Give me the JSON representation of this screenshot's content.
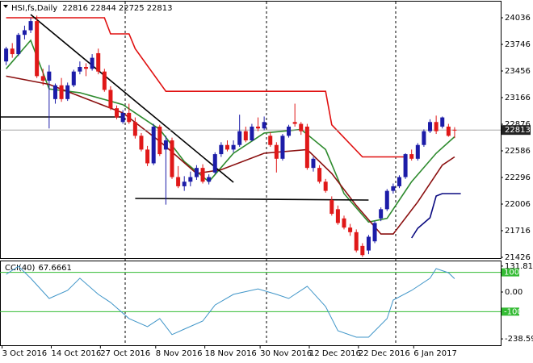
{
  "chart_data": [
    {
      "type": "candlestick",
      "title": "HSI,fs,Daily",
      "header_values": [
        22816,
        22844,
        22725,
        22813
      ],
      "open": [
        23560,
        23700,
        23640,
        23850,
        23900,
        24000,
        23400,
        23350,
        23150,
        23300,
        23150,
        23300,
        23450,
        23500,
        23480,
        23650,
        23450,
        23250,
        23050,
        22900,
        23000,
        22900,
        22750,
        22600,
        22450,
        22850,
        22600,
        22700,
        22300,
        22200,
        22250,
        22300,
        22400,
        22250,
        22350,
        22550,
        22650,
        22600,
        22650,
        22800,
        22700,
        22850,
        22830,
        22750,
        22650,
        22500,
        22750,
        22900,
        22880,
        22850,
        22400,
        22400,
        22250,
        22050,
        21950,
        21850,
        21750,
        21700,
        21550,
        21500,
        21600,
        21850,
        21950,
        22150,
        22200,
        22300,
        22550,
        22500,
        22650,
        22800,
        22900,
        22850,
        22850,
        22816
      ],
      "high": [
        23720,
        23760,
        23870,
        23950,
        24030,
        24060,
        23480,
        23520,
        23320,
        23380,
        23330,
        23470,
        23560,
        23540,
        23640,
        23700,
        23480,
        23290,
        23080,
        23030,
        23100,
        22950,
        22780,
        22640,
        22880,
        22870,
        22750,
        22730,
        22420,
        22310,
        22360,
        22430,
        22440,
        22330,
        22570,
        22680,
        22700,
        22700,
        22980,
        22850,
        22880,
        22950,
        22960,
        22790,
        22680,
        22770,
        22870,
        23100,
        22900,
        22880,
        22520,
        22430,
        22280,
        22090,
        21990,
        21880,
        21790,
        21730,
        21580,
        21670,
        21820,
        21970,
        22170,
        22230,
        22320,
        22560,
        22600,
        22670,
        22820,
        22930,
        22970,
        22960,
        22880,
        22844
      ],
      "low": [
        23520,
        23600,
        23620,
        23800,
        23870,
        23380,
        23300,
        22830,
        23100,
        23120,
        23130,
        23280,
        23420,
        23400,
        23460,
        23420,
        23230,
        23030,
        22930,
        22880,
        22880,
        22720,
        22580,
        22420,
        22430,
        22530,
        22000,
        22280,
        22180,
        22150,
        22200,
        22270,
        22230,
        22220,
        22330,
        22520,
        22580,
        22570,
        22630,
        22680,
        22690,
        22800,
        22810,
        22630,
        22350,
        22480,
        22730,
        22850,
        22760,
        22380,
        22360,
        22230,
        22130,
        21880,
        21780,
        21730,
        21660,
        21480,
        21430,
        21460,
        21580,
        21820,
        21930,
        22120,
        22180,
        22280,
        22480,
        22480,
        22630,
        22780,
        22770,
        22830,
        22740,
        22725
      ],
      "close": [
        23700,
        23640,
        23850,
        23900,
        24000,
        23400,
        23350,
        23450,
        23300,
        23150,
        23300,
        23450,
        23500,
        23480,
        23600,
        23450,
        23250,
        23050,
        22950,
        23000,
        22900,
        22750,
        22600,
        22450,
        22850,
        22550,
        22700,
        22300,
        22200,
        22250,
        22300,
        22400,
        22250,
        22300,
        22550,
        22650,
        22600,
        22650,
        22800,
        22700,
        22850,
        22830,
        22900,
        22650,
        22500,
        22750,
        22850,
        22880,
        22800,
        22400,
        22500,
        22250,
        22150,
        21900,
        21800,
        21750,
        21700,
        21500,
        21450,
        21650,
        21800,
        21950,
        22150,
        22200,
        22300,
        22550,
        22500,
        22650,
        22800,
        22900,
        22800,
        22950,
        22750,
        22813
      ],
      "up_color": "#1c1ca8",
      "down_color": "#e01818",
      "current_price": 22813,
      "xlim": [
        -1,
        80.5
      ],
      "ylim": [
        21417,
        24212
      ],
      "yticks": [
        24036,
        23746,
        23456,
        23166,
        22876,
        22586,
        22296,
        22006,
        21716,
        21426
      ],
      "xticks": [
        {
          "value": 0,
          "label": "3 Oct 2016"
        },
        {
          "value": 8,
          "label": "14 Oct 2016"
        },
        {
          "value": 16,
          "label": "27 Oct 2016"
        },
        {
          "value": 25,
          "label": "8 Nov 2016"
        },
        {
          "value": 33,
          "label": "18 Nov 2016"
        },
        {
          "value": 42,
          "label": "30 Nov 2016"
        },
        {
          "value": 50,
          "label": "12 Dec 2016"
        },
        {
          "value": 58,
          "label": "22 Dec 2016"
        },
        {
          "value": 67,
          "label": "6 Jan 2017"
        }
      ],
      "lines": [
        {
          "color": "#2e8b2e",
          "x": [
            0,
            4,
            7,
            12,
            19,
            25,
            29,
            33,
            37,
            42,
            48,
            52,
            55,
            59,
            62,
            66,
            70,
            73
          ],
          "values": [
            23480,
            23790,
            23260,
            23220,
            23090,
            22820,
            22470,
            22250,
            22560,
            22780,
            22820,
            22600,
            22120,
            21810,
            21850,
            22250,
            22560,
            22740
          ]
        },
        {
          "color": "#8b1010",
          "x": [
            0,
            7,
            12,
            19,
            25,
            31,
            35,
            42,
            49,
            53,
            57,
            61,
            63,
            67,
            71,
            73
          ],
          "values": [
            23400,
            23310,
            23180,
            23000,
            22690,
            22340,
            22380,
            22560,
            22600,
            22340,
            21990,
            21680,
            21680,
            22030,
            22430,
            22520
          ]
        },
        {
          "color": "#e01010",
          "x": [
            0,
            16,
            17,
            20,
            21,
            26,
            52,
            53,
            58,
            65
          ],
          "values": [
            24036,
            24036,
            23860,
            23860,
            23700,
            23235,
            23235,
            22870,
            22520,
            22520
          ]
        },
        {
          "color": "#0a0a80",
          "x": [
            66,
            67,
            69,
            70,
            71,
            74
          ],
          "values": [
            21637,
            21742,
            21857,
            22094,
            22120,
            22120
          ]
        },
        {
          "color": "#000000",
          "x": [
            4,
            37
          ],
          "values": [
            24071,
            22243
          ]
        },
        {
          "color": "#000000",
          "x": [
            -1,
            19
          ],
          "values": [
            22955,
            22955
          ]
        },
        {
          "color": "#000000",
          "x": [
            21,
            59
          ],
          "values": [
            22067,
            22050
          ]
        }
      ]
    },
    {
      "type": "line",
      "title": "CCI(40)",
      "last_value": 67.6661,
      "color": "#3f95c8",
      "level_color": "#33bb33",
      "x": [
        0,
        2,
        4,
        7,
        10,
        12,
        15,
        17,
        20,
        23,
        25,
        27,
        29,
        32,
        34,
        37,
        41,
        44,
        46,
        49,
        52,
        54,
        57,
        59,
        62,
        63,
        66,
        69,
        70,
        72,
        73
      ],
      "values": [
        90,
        131,
        70,
        -33,
        8,
        70,
        -12,
        -53,
        -135,
        -176,
        -135,
        -217,
        -189,
        -148,
        -66,
        -12,
        16,
        -12,
        -33,
        29,
        -74,
        -197,
        -230,
        -230,
        -135,
        -41,
        8,
        70,
        119,
        98,
        67.6661
      ],
      "xlim": [
        -1,
        80.5
      ],
      "ylim": [
        -271,
        156
      ],
      "yticks": [
        131.8119,
        {
          "value": 0,
          "label": "0.00"
        },
        -238.593
      ],
      "levels": [
        100,
        -100
      ]
    }
  ]
}
